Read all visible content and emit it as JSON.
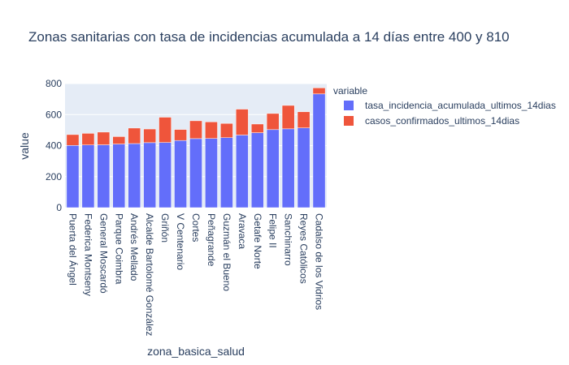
{
  "chart_data": {
    "type": "bar",
    "stacked": true,
    "title": "Zonas sanitarias con tasa de incidencias acumulada a 14 días entre 400 y 810",
    "xlabel": "zona_basica_salud",
    "ylabel": "value",
    "ylim": [
      0,
      800
    ],
    "yticks": [
      0,
      200,
      400,
      600,
      800
    ],
    "legend_title": "variable",
    "legend_position": "right",
    "categories": [
      "Puerta del Ángel",
      "Federica Montseny",
      "General Moscardó",
      "Parque Coimbra",
      "Andrés Mellado",
      "Alcalde Bartolomé González",
      "Griñón",
      "V Centenario",
      "Cortes",
      "Peñagrande",
      "Guzmán el Bueno",
      "Aravaca",
      "Getafe Norte",
      "Felipe II",
      "Sanchinarro",
      "Reyes Católicos",
      "Cadalso de los Vidrios"
    ],
    "series": [
      {
        "name": "tasa_incidencia_acumulada_ultimos_14dias",
        "color": "#636efa",
        "values": [
          401,
          404,
          405,
          410,
          413,
          419,
          420,
          433,
          445,
          446,
          451,
          468,
          483,
          503,
          508,
          514,
          733
        ]
      },
      {
        "name": "casos_confirmados_ultimos_14dias",
        "color": "#ef553b",
        "values": [
          70,
          75,
          82,
          48,
          100,
          88,
          163,
          71,
          115,
          107,
          92,
          167,
          56,
          104,
          151,
          104,
          39
        ]
      }
    ]
  }
}
